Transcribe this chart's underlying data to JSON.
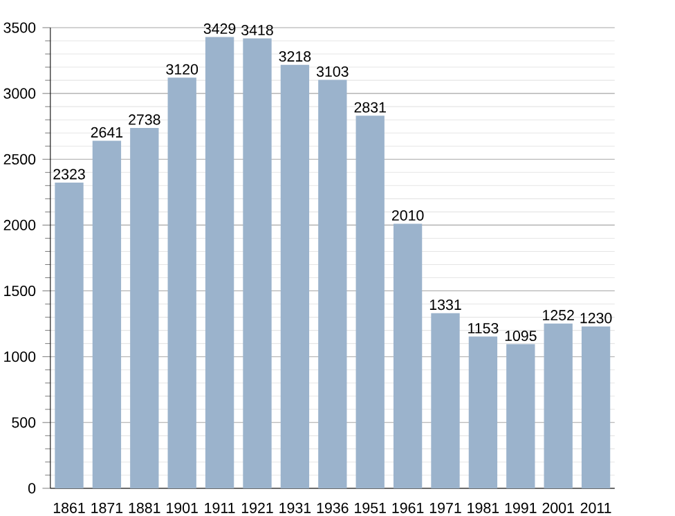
{
  "chart_data": {
    "type": "bar",
    "categories": [
      "1861",
      "1871",
      "1881",
      "1901",
      "1911",
      "1921",
      "1931",
      "1936",
      "1951",
      "1961",
      "1971",
      "1981",
      "1991",
      "2001",
      "2011"
    ],
    "values": [
      2323,
      2641,
      2738,
      3120,
      3429,
      3418,
      3218,
      3103,
      2831,
      2010,
      1331,
      1153,
      1095,
      1252,
      1230
    ],
    "color": "#9bb3cc",
    "ylim": [
      0,
      3500
    ],
    "yticks": [
      0,
      500,
      1000,
      1500,
      2000,
      2500,
      3000,
      3500
    ],
    "grid": "y",
    "data_labels": true
  }
}
